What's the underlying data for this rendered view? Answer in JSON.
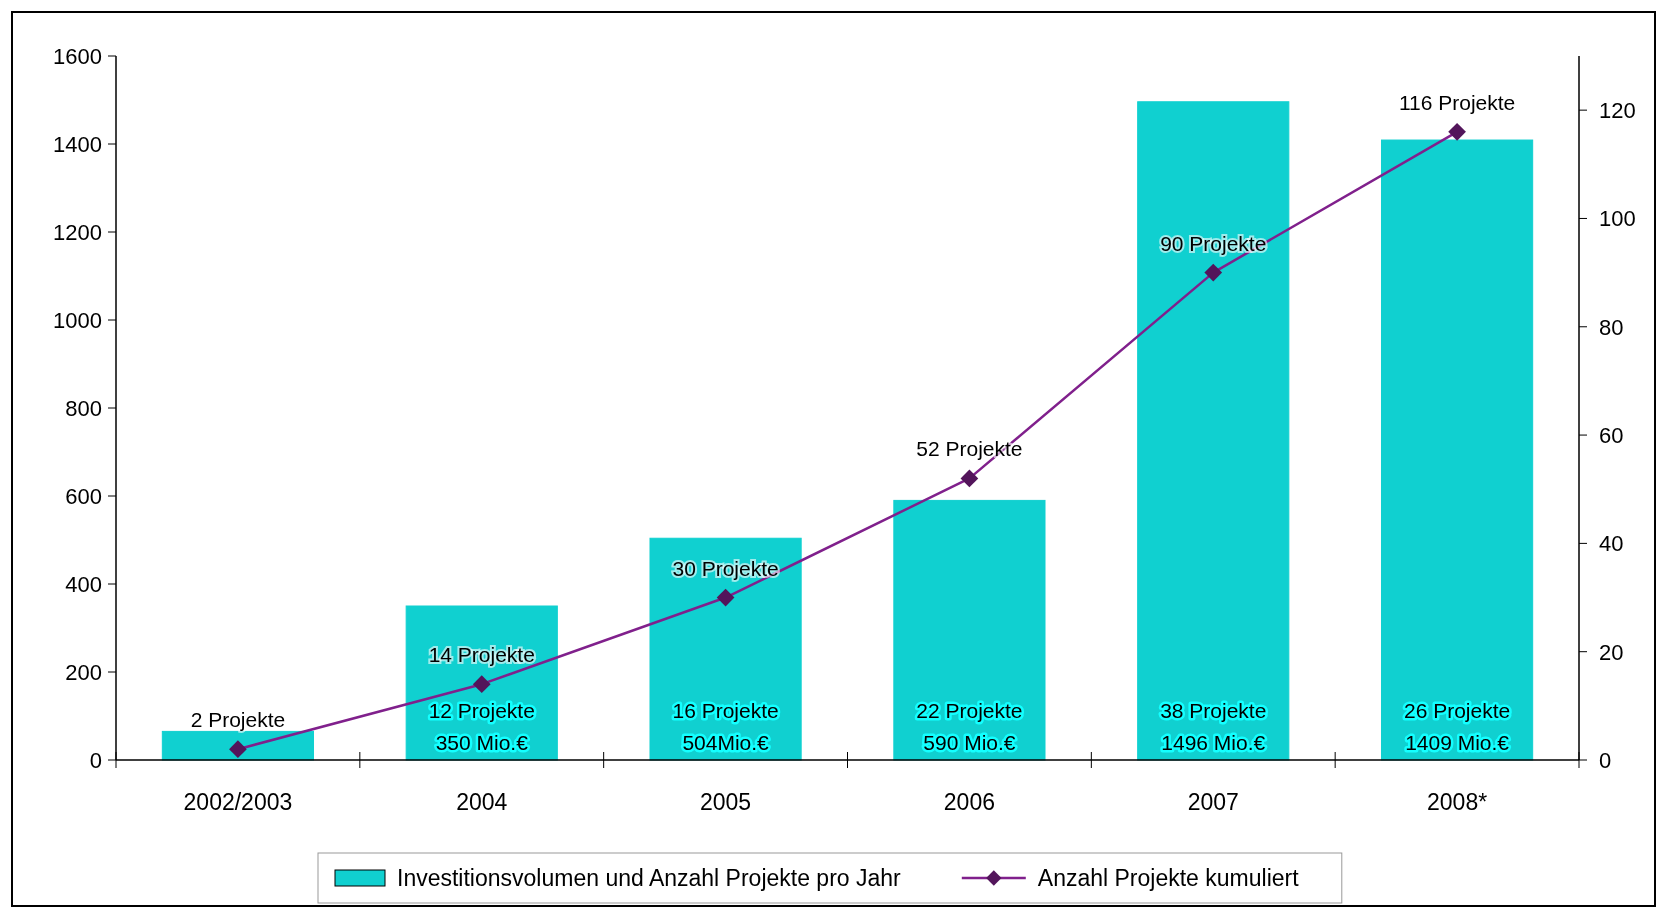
{
  "chart_data": {
    "type": "bar",
    "categories": [
      "2002/2003",
      "2004",
      "2005",
      "2006",
      "2007",
      "2008*"
    ],
    "series": [
      {
        "name": "Investitionsvolumen und Anzahl Projekte pro Jahr",
        "color": "#10d0d0",
        "values": [
          65,
          350,
          504,
          590,
          1496,
          1409
        ],
        "value_labels": [
          null,
          "12 Projekte\n350 Mio.€",
          "16 Projekte\n504Mio.€",
          "22 Projekte\n590 Mio.€",
          "38 Projekte\n1496 Mio.€",
          "26 Projekte\n1409  Mio.€"
        ]
      },
      {
        "name": "Anzahl Projekte kumuliert",
        "type": "line",
        "axis": "y2",
        "color": "#80208c",
        "marker": "diamond",
        "values": [
          2,
          14,
          30,
          52,
          90,
          116
        ],
        "value_labels": [
          "2 Projekte",
          "14 Projekte",
          "30 Projekte",
          "52 Projekte",
          "90 Projekte",
          "116 Projekte"
        ]
      }
    ],
    "ylim": [
      0,
      1600
    ],
    "yticks": [
      0,
      200,
      400,
      600,
      800,
      1000,
      1200,
      1400,
      1600
    ],
    "y2lim": [
      0,
      130
    ],
    "y2ticks": [
      0,
      20,
      40,
      60,
      80,
      100,
      120
    ],
    "grid": false,
    "legend": "bottom"
  }
}
